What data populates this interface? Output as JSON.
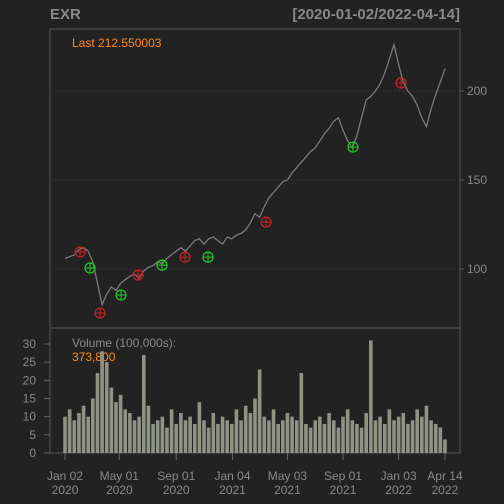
{
  "chart_data": [
    {
      "type": "line",
      "title": "EXR",
      "subtitle": "[2020-01-02/2022-04-14]",
      "annotation": "Last 212.550003",
      "color": "#7a7a7a",
      "x": [
        0,
        7,
        14,
        21,
        28,
        35,
        42,
        49,
        56,
        63,
        70,
        77,
        84,
        91,
        98,
        105,
        112,
        119,
        126,
        133,
        140,
        147,
        154,
        161,
        168,
        175,
        182,
        189,
        196,
        203,
        210,
        217,
        224,
        231,
        238,
        245,
        252,
        259,
        266,
        273,
        280,
        287,
        294,
        301,
        308,
        315,
        322,
        329,
        336,
        343,
        350,
        357,
        364,
        371,
        378,
        385,
        392,
        399,
        406,
        413,
        420,
        427,
        434,
        441,
        448,
        455,
        462,
        469,
        476,
        483,
        490,
        497,
        504,
        511,
        518,
        525,
        532,
        539,
        546,
        553,
        560,
        567,
        574
      ],
      "values": [
        106,
        107,
        108,
        111,
        112,
        110,
        104,
        92,
        80,
        86,
        90,
        88,
        92,
        94,
        96,
        97,
        95,
        99,
        101,
        102,
        104,
        103,
        106,
        108,
        110,
        112,
        110,
        113,
        116,
        117,
        114,
        117,
        118,
        116,
        114,
        118,
        117,
        119,
        120,
        122,
        126,
        131,
        129,
        135,
        140,
        143,
        146,
        149,
        150,
        154,
        157,
        160,
        163,
        166,
        168,
        172,
        176,
        179,
        183,
        185,
        178,
        172,
        168,
        175,
        185,
        195,
        197,
        200,
        204,
        210,
        218,
        226,
        215,
        205,
        200,
        197,
        192,
        185,
        180,
        190,
        198,
        205,
        212.550003
      ],
      "markers": [
        {
          "color": "#cc2222",
          "x": [
            22.7,
            52.9,
            110.3,
            181.3,
            303.6,
            507.6
          ],
          "values": [
            109.6,
            75.3,
            96.6,
            106.7,
            126.4,
            204.5
          ]
        },
        {
          "color": "#22cc22",
          "x": [
            37.8,
            84.6,
            146.5,
            216,
            435
          ],
          "values": [
            100.6,
            85.4,
            102.2,
            106.7,
            168.5
          ]
        }
      ],
      "xlim": [
        -22.7,
        596.7
      ],
      "ylim": [
        66.9,
        234.8
      ],
      "yticks": [
        100,
        150,
        200
      ],
      "grid": true
    },
    {
      "type": "bar",
      "title": "Volume (100,000s):",
      "annotation": "373,800",
      "color": "#8f9384",
      "x": [
        0,
        7,
        14,
        21,
        28,
        35,
        42,
        49,
        56,
        63,
        70,
        77,
        84,
        91,
        98,
        105,
        112,
        119,
        126,
        133,
        140,
        147,
        154,
        161,
        168,
        175,
        182,
        189,
        196,
        203,
        210,
        217,
        224,
        231,
        238,
        245,
        252,
        259,
        266,
        273,
        280,
        287,
        294,
        301,
        308,
        315,
        322,
        329,
        336,
        343,
        350,
        357,
        364,
        371,
        378,
        385,
        392,
        399,
        406,
        413,
        420,
        427,
        434,
        441,
        448,
        455,
        462,
        469,
        476,
        483,
        490,
        497,
        504,
        511,
        518,
        525,
        532,
        539,
        546,
        553,
        560,
        567,
        574
      ],
      "values": [
        10,
        12,
        9,
        11,
        13,
        10,
        15,
        22,
        28,
        25,
        18,
        14,
        16,
        12,
        11,
        9,
        10,
        27,
        13,
        8,
        9,
        10,
        7,
        12,
        8,
        11,
        9,
        10,
        8,
        14,
        9,
        7,
        11,
        8,
        10,
        9,
        8,
        12,
        9,
        13,
        11,
        15,
        23,
        10,
        9,
        12,
        8,
        9,
        11,
        10,
        9,
        22,
        8,
        7,
        9,
        10,
        8,
        11,
        9,
        7,
        10,
        12,
        9,
        8,
        7,
        11,
        31,
        9,
        10,
        8,
        12,
        9,
        10,
        11,
        8,
        9,
        12,
        10,
        13,
        9,
        8,
        7,
        3.738
      ],
      "xlim": [
        -22.7,
        596.7
      ],
      "ylim": [
        0,
        34.4
      ],
      "yticks": [
        0,
        5,
        10,
        15,
        20,
        25,
        30
      ],
      "xticks": [
        {
          "value": 0,
          "label": "Jan 02",
          "year": "2020"
        },
        {
          "value": 82,
          "label": "May 01",
          "year": "2020"
        },
        {
          "value": 168,
          "label": "Sep 01",
          "year": "2020"
        },
        {
          "value": 253,
          "label": "Jan 04",
          "year": "2021"
        },
        {
          "value": 336,
          "label": "May 03",
          "year": "2021"
        },
        {
          "value": 420,
          "label": "Sep 01",
          "year": "2021"
        },
        {
          "value": 504,
          "label": "Jan 03",
          "year": "2022"
        },
        {
          "value": 574,
          "label": "Apr 14",
          "year": "2022"
        }
      ]
    }
  ]
}
